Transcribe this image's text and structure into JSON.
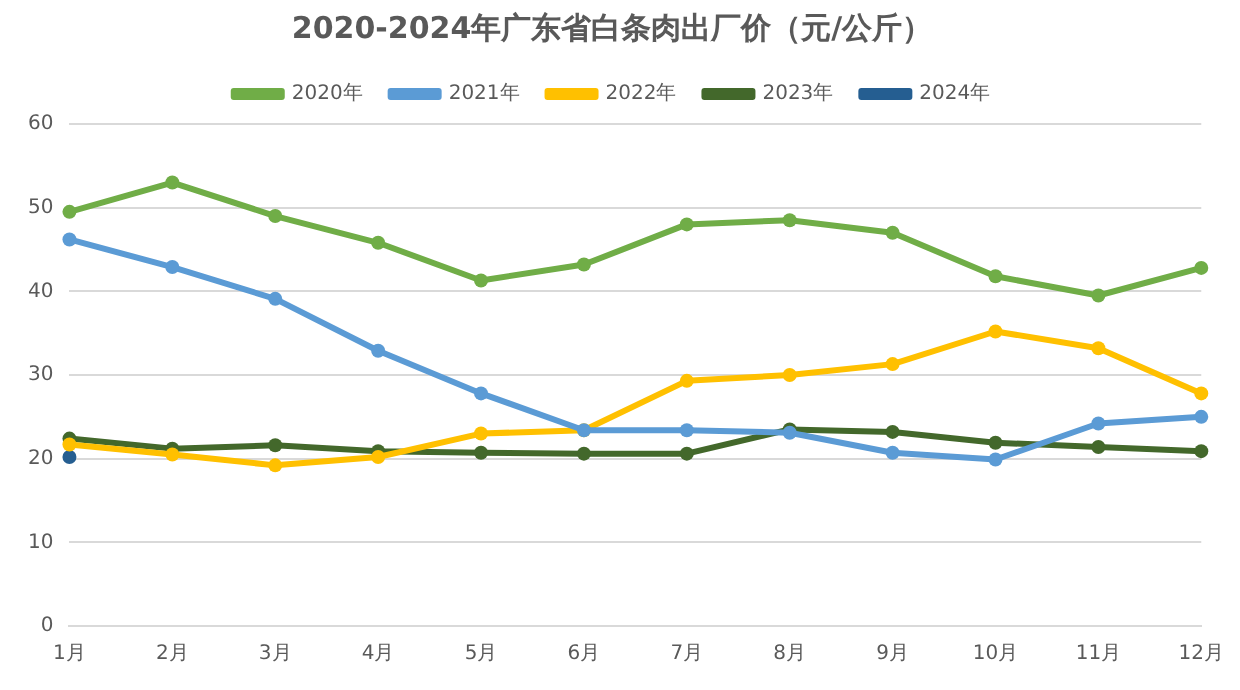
{
  "chart_data": {
    "type": "line",
    "title": "2020-2024年广东省白条肉出厂价（元/公斤）",
    "categories": [
      "1月",
      "2月",
      "3月",
      "4月",
      "5月",
      "6月",
      "7月",
      "8月",
      "9月",
      "10月",
      "11月",
      "12月"
    ],
    "series": [
      {
        "name": "2020年",
        "color": "#70ad47",
        "values": [
          49.5,
          53,
          49,
          45.8,
          41.3,
          43.2,
          48,
          48.5,
          47,
          41.8,
          39.5,
          42.8
        ]
      },
      {
        "name": "2021年",
        "color": "#5b9bd5",
        "values": [
          46.2,
          42.9,
          39.1,
          32.9,
          27.8,
          23.4,
          23.4,
          23.1,
          20.7,
          19.9,
          24.2,
          25.0
        ]
      },
      {
        "name": "2022年",
        "color": "#ffc000",
        "values": [
          21.7,
          20.5,
          19.2,
          20.2,
          23.0,
          23.4,
          29.3,
          30.0,
          31.3,
          35.2,
          33.2,
          27.8
        ]
      },
      {
        "name": "2023年",
        "color": "#43682b",
        "values": [
          22.4,
          21.2,
          21.6,
          20.9,
          20.7,
          20.6,
          20.6,
          23.5,
          23.2,
          21.9,
          21.4,
          20.9
        ]
      },
      {
        "name": "2024年",
        "color": "#255e91",
        "values": [
          20.2,
          null,
          null,
          null,
          null,
          null,
          null,
          null,
          null,
          null,
          null,
          null
        ]
      }
    ],
    "ylim": [
      0,
      60
    ],
    "yticks": [
      0,
      10,
      20,
      30,
      40,
      50,
      60
    ],
    "grid": "y",
    "legend": "top",
    "marker": "circle",
    "line_style": "solid"
  }
}
